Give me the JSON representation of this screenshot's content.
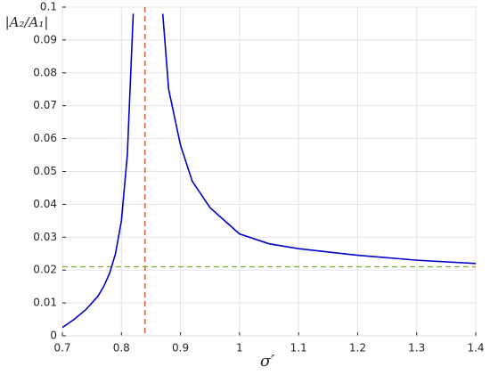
{
  "chart_data": {
    "type": "line",
    "x_label": "σ′",
    "y_label": "|A₂/A₁|",
    "x": [
      0.7,
      0.72,
      0.74,
      0.76,
      0.77,
      0.78,
      0.79,
      0.8,
      0.81,
      0.82,
      0.845,
      0.87,
      0.88,
      0.9,
      0.92,
      0.95,
      1.0,
      1.05,
      1.1,
      1.2,
      1.3,
      1.4
    ],
    "series": [
      {
        "color": "#0000cc",
        "values": [
          0.0025,
          0.005,
          0.008,
          0.012,
          0.015,
          0.019,
          0.025,
          0.035,
          0.055,
          0.098,
          null,
          0.098,
          0.075,
          0.058,
          0.047,
          0.039,
          0.031,
          0.028,
          0.0265,
          0.0245,
          0.023,
          0.022
        ]
      }
    ],
    "vlines": [
      {
        "x": 0.84,
        "color": "#d95319"
      }
    ],
    "hlines": [
      {
        "y": 0.021,
        "color": "#77ac30"
      }
    ],
    "xlim": [
      0.7,
      1.4
    ],
    "xticks": [
      0.7,
      0.8,
      0.9,
      1,
      1.1,
      1.2,
      1.3,
      1.4
    ],
    "ylim": [
      0,
      0.1
    ],
    "yticks": [
      0,
      0.01,
      0.02,
      0.03,
      0.04,
      0.05,
      0.06,
      0.07,
      0.08,
      0.09,
      0.1
    ],
    "grid": true
  }
}
